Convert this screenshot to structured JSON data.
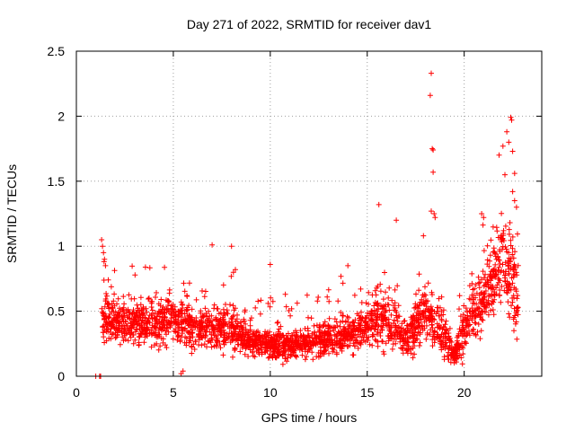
{
  "chart_data": {
    "type": "scatter",
    "title": "Day 271 of 2022, SRMTID for receiver dav1",
    "xlabel": "GPS time / hours",
    "ylabel": "SRMTID / TECUs",
    "xlim": [
      0,
      24
    ],
    "ylim": [
      0,
      2.5
    ],
    "x_ticks": [
      0,
      5,
      10,
      15,
      20
    ],
    "x_tick_labels": [
      "0",
      "5",
      "10",
      "15",
      "20"
    ],
    "y_ticks": [
      0,
      0.5,
      1,
      1.5,
      2,
      2.5
    ],
    "y_tick_labels": [
      "0",
      "0.5",
      "1",
      "1.5",
      "2",
      "2.5"
    ],
    "grid": true,
    "marker": "plus",
    "series_color": "#ff0000",
    "profile": [
      [
        1.3,
        0.45,
        0.12
      ],
      [
        2.0,
        0.42,
        0.12
      ],
      [
        3.0,
        0.4,
        0.13
      ],
      [
        4.0,
        0.42,
        0.14
      ],
      [
        5.0,
        0.44,
        0.15
      ],
      [
        6.0,
        0.38,
        0.14
      ],
      [
        7.0,
        0.38,
        0.14
      ],
      [
        8.0,
        0.36,
        0.14
      ],
      [
        9.0,
        0.26,
        0.08
      ],
      [
        10.0,
        0.24,
        0.08
      ],
      [
        11.0,
        0.24,
        0.08
      ],
      [
        12.0,
        0.27,
        0.08
      ],
      [
        13.0,
        0.3,
        0.1
      ],
      [
        14.0,
        0.32,
        0.1
      ],
      [
        15.0,
        0.4,
        0.14
      ],
      [
        16.0,
        0.45,
        0.18
      ],
      [
        17.0,
        0.28,
        0.12
      ],
      [
        18.0,
        0.5,
        0.18
      ],
      [
        19.0,
        0.3,
        0.14
      ],
      [
        19.5,
        0.15,
        0.05
      ],
      [
        20.0,
        0.35,
        0.15
      ],
      [
        21.0,
        0.6,
        0.2
      ],
      [
        22.0,
        0.9,
        0.3
      ],
      [
        22.8,
        0.6,
        0.25
      ]
    ],
    "extra_points": [
      [
        1.3,
        1.05
      ],
      [
        1.35,
        1.0
      ],
      [
        1.4,
        0.95
      ],
      [
        1.45,
        0.9
      ],
      [
        1.5,
        0.85
      ],
      [
        18.3,
        2.33
      ],
      [
        18.25,
        2.16
      ],
      [
        18.35,
        1.75
      ],
      [
        18.4,
        1.74
      ],
      [
        18.4,
        1.57
      ],
      [
        18.3,
        1.27
      ],
      [
        18.45,
        1.25
      ],
      [
        18.5,
        1.22
      ],
      [
        21.8,
        1.7
      ],
      [
        22.0,
        1.77
      ],
      [
        22.2,
        1.88
      ],
      [
        22.4,
        1.99
      ],
      [
        22.45,
        1.97
      ],
      [
        22.3,
        1.8
      ],
      [
        22.5,
        1.73
      ],
      [
        22.6,
        1.56
      ],
      [
        22.1,
        1.55
      ],
      [
        22.5,
        1.42
      ],
      [
        22.6,
        1.35
      ],
      [
        22.7,
        1.3
      ],
      [
        15.6,
        1.32
      ],
      [
        16.5,
        1.2
      ],
      [
        17.9,
        1.08
      ],
      [
        8.2,
        0.82
      ],
      [
        8.1,
        0.8
      ],
      [
        7.0,
        1.01
      ],
      [
        8.0,
        1.0
      ],
      [
        10.0,
        0.86
      ],
      [
        14.0,
        0.85
      ],
      [
        20.9,
        1.25
      ],
      [
        21.9,
        1.05
      ],
      [
        21.0,
        1.22
      ],
      [
        1.0,
        0.0
      ],
      [
        1.2,
        0.0
      ],
      [
        1.25,
        0.0
      ],
      [
        5.4,
        0.02
      ],
      [
        5.5,
        0.04
      ]
    ],
    "seed": 271
  }
}
